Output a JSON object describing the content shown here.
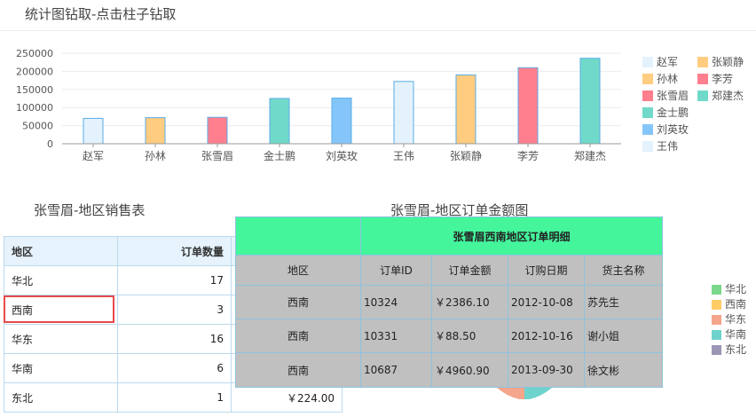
{
  "page": {
    "title": "统计图钻取-点击柱子钻取",
    "left_title": "张雪眉-地区销售表",
    "right_title": "张雪眉-地区订单金额图"
  },
  "chart_data": {
    "type": "bar",
    "categories": [
      "赵军",
      "孙林",
      "张雪眉",
      "金士鹏",
      "刘英玫",
      "王伟",
      "张颖静",
      "李芳",
      "郑建杰"
    ],
    "values": [
      70000,
      72000,
      73000,
      125000,
      126000,
      172000,
      190000,
      210000,
      236000
    ],
    "colors": [
      "#e3f2fd",
      "#ffcc80",
      "#ff7f8e",
      "#70d9c9",
      "#85c6fa",
      "#e3f2fd",
      "#ffcc80",
      "#ff7f8e",
      "#70d9c9"
    ],
    "border_color": "#5aace6",
    "ylim": [
      0,
      250000
    ],
    "yticks": [
      0,
      50000,
      100000,
      150000,
      200000,
      250000
    ],
    "ytick_labels": [
      "0",
      "50000",
      "100000",
      "150000",
      "200000",
      "250000"
    ],
    "grid": true,
    "legend_position": "right",
    "legend": [
      {
        "name": "赵军",
        "color": "#e3f2fd"
      },
      {
        "name": "张颖静",
        "color": "#ffcc80"
      },
      {
        "name": "孙林",
        "color": "#ffcc80"
      },
      {
        "name": "李芳",
        "color": "#ff7f8e"
      },
      {
        "name": "张雪眉",
        "color": "#ff7f8e"
      },
      {
        "name": "郑建杰",
        "color": "#70d9c9"
      },
      {
        "name": "金士鹏",
        "color": "#70d9c9"
      },
      {
        "name": "刘英玫",
        "color": "#85c6fa"
      },
      {
        "name": "王伟",
        "color": "#e3f2fd"
      }
    ]
  },
  "sales_table": {
    "headers": [
      "地区",
      "订单数量",
      ""
    ],
    "rows": [
      [
        "华北",
        "17",
        ""
      ],
      [
        "西南",
        "3",
        ""
      ],
      [
        "华东",
        "16",
        ""
      ],
      [
        "华南",
        "6",
        ""
      ],
      [
        "东北",
        "1",
        "￥224.00"
      ]
    ]
  },
  "detail_popup": {
    "title": "张雪眉西南地区订单明细",
    "headers": [
      "地区",
      "订单ID",
      "订单金额",
      "订购日期",
      "货主名称"
    ],
    "region": "西南",
    "rows": [
      {
        "region": "西南",
        "order_id": "10324",
        "amount": "￥2386.10",
        "date": "2012-10-08",
        "shipper": "苏先生"
      },
      {
        "region": "西南",
        "order_id": "10331",
        "amount": "￥88.50",
        "date": "2012-10-16",
        "shipper": "谢小姐"
      },
      {
        "region": "西南",
        "order_id": "10687",
        "amount": "￥4960.90",
        "date": "2013-09-30",
        "shipper": "徐文彬"
      }
    ],
    "colors": {
      "header": "#44f59c",
      "body": "#c0c0c0"
    }
  },
  "pie_legend": [
    {
      "name": "华北",
      "color": "#7ad88b"
    },
    {
      "name": "西南",
      "color": "#ffcc66"
    },
    {
      "name": "华东",
      "color": "#f4a58c"
    },
    {
      "name": "华南",
      "color": "#6ed3cc"
    },
    {
      "name": "东北",
      "color": "#9a96b4"
    }
  ]
}
